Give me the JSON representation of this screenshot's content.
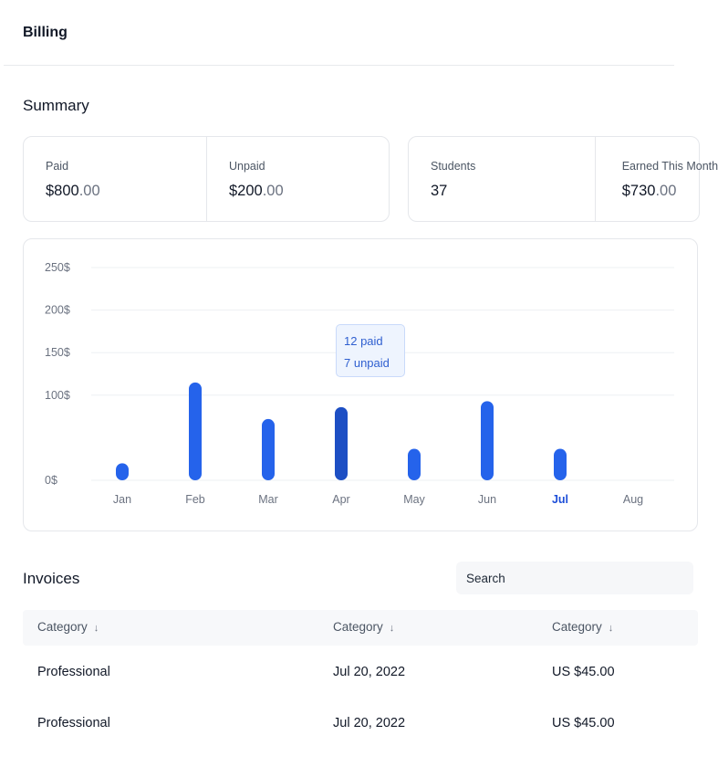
{
  "header": {
    "title": "Billing"
  },
  "summary": {
    "title": "Summary",
    "stats": [
      {
        "label": "Paid",
        "amount": "$800",
        "cents": ".00"
      },
      {
        "label": "Unpaid",
        "amount": "$200",
        "cents": ".00"
      },
      {
        "label": "Students",
        "amount": "37",
        "cents": ""
      },
      {
        "label": "Earned This Month",
        "amount": "$730",
        "cents": ".00"
      }
    ]
  },
  "chart_data": {
    "type": "bar",
    "categories": [
      "Jan",
      "Feb",
      "Mar",
      "Apr",
      "May",
      "Jun",
      "Jul",
      "Aug"
    ],
    "values": [
      20,
      115,
      72,
      86,
      37,
      93,
      37,
      null
    ],
    "ylim": [
      0,
      250
    ],
    "yticks": [
      "0$",
      "100$",
      "150$",
      "200$",
      "250$"
    ],
    "ytick_values": [
      0,
      100,
      150,
      200,
      250
    ],
    "highlighted_bar": "Apr",
    "active_category": "Jul",
    "bar_color": "#2563eb",
    "highlight_color": "#1d4fc4",
    "active_label_color": "#1d4ed8",
    "grid": true,
    "tooltip": {
      "category": "Apr",
      "paid": "12 paid",
      "unpaid": "7 unpaid"
    }
  },
  "invoices": {
    "title": "Invoices",
    "search": {
      "placeholder": "Search",
      "value": ""
    },
    "columns": [
      {
        "label": "Category",
        "sort_icon": "arrow-down-icon"
      },
      {
        "label": "Category",
        "sort_icon": "arrow-down-icon"
      },
      {
        "label": "Category",
        "sort_icon": "arrow-down-icon"
      }
    ],
    "rows": [
      [
        "Professional",
        "Jul 20, 2022",
        "US $45.00"
      ],
      [
        "Professional",
        "Jul 20, 2022",
        "US $45.00"
      ]
    ]
  }
}
